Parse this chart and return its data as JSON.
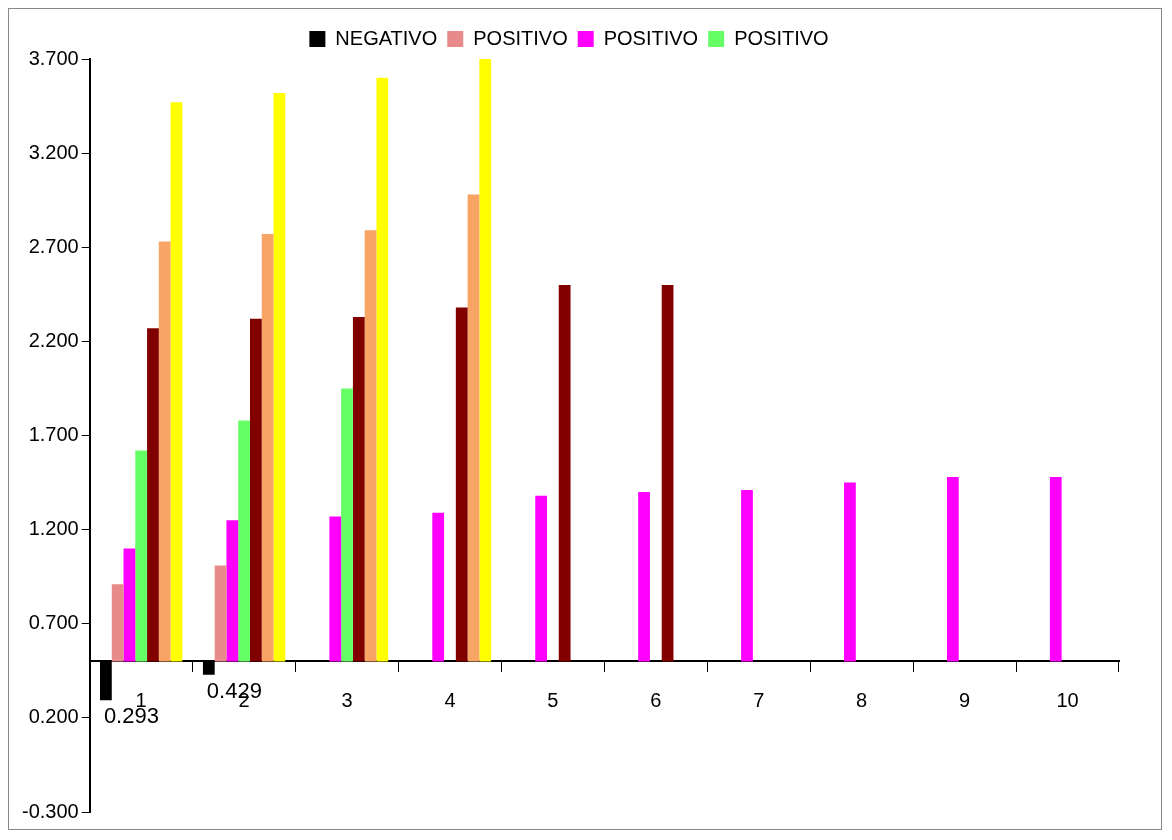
{
  "chart_data": {
    "type": "bar",
    "categories": [
      "1",
      "2",
      "3",
      "4",
      "5",
      "6",
      "7",
      "8",
      "9",
      "10"
    ],
    "series": [
      {
        "name": "NEGATIVO",
        "color": "#000000",
        "base": [
          0.5,
          0.5,
          null,
          null,
          null,
          null,
          null,
          null,
          null,
          null
        ],
        "values": [
          -0.207,
          -0.071,
          null,
          null,
          null,
          null,
          null,
          null,
          null,
          null
        ],
        "value_labels": [
          "0.293",
          "0.429",
          null,
          null,
          null,
          null,
          null,
          null,
          null,
          null
        ]
      },
      {
        "name": "POSITIVO",
        "color": "#e88a8a",
        "base": [
          0.5,
          0.5,
          null,
          null,
          null,
          null,
          null,
          null,
          null,
          null
        ],
        "values": [
          0.41,
          0.51,
          null,
          null,
          null,
          null,
          null,
          null,
          null,
          null
        ]
      },
      {
        "name": "POSITIVO",
        "color": "#ff00ff",
        "base": [
          0.5,
          0.5,
          0.5,
          0.5,
          0.5,
          0.5,
          0.5,
          0.5,
          0.5,
          0.5
        ],
        "values": [
          0.6,
          0.75,
          0.77,
          0.79,
          0.88,
          0.9,
          0.91,
          0.95,
          0.98,
          0.98
        ]
      },
      {
        "name": "POSITIVO",
        "color": "#66ff66",
        "base": [
          0.5,
          0.5,
          0.5,
          null,
          null,
          null,
          null,
          null,
          null,
          null
        ],
        "values": [
          1.12,
          1.28,
          1.45,
          null,
          null,
          null,
          null,
          null,
          null,
          null
        ]
      },
      {
        "color": "#800000",
        "base": [
          0.5,
          0.5,
          0.5,
          0.5,
          0.5,
          0.5,
          null,
          null,
          null,
          null
        ],
        "values": [
          1.77,
          1.82,
          1.83,
          1.88,
          2.0,
          2.0,
          null,
          null,
          null,
          null
        ]
      },
      {
        "color": "#f8a464",
        "base": [
          0.5,
          0.5,
          0.5,
          0.5,
          null,
          null,
          null,
          null,
          null,
          null
        ],
        "values": [
          2.23,
          2.27,
          2.29,
          2.48,
          null,
          null,
          null,
          null,
          null,
          null
        ]
      },
      {
        "color": "#ffff00",
        "base": [
          0.5,
          0.5,
          0.5,
          0.5,
          null,
          null,
          null,
          null,
          null,
          null
        ],
        "values": [
          2.97,
          3.02,
          3.1,
          3.2,
          null,
          null,
          null,
          null,
          null,
          null
        ]
      }
    ],
    "ylim": [
      -0.3,
      3.7
    ],
    "yticks": [
      {
        "value": -0.3,
        "label": "-0.300"
      },
      {
        "value": 0.2,
        "label": "0.200"
      },
      {
        "value": 0.7,
        "label": "0.700"
      },
      {
        "value": 1.2,
        "label": "1.200"
      },
      {
        "value": 1.7,
        "label": "1.700"
      },
      {
        "value": 2.2,
        "label": "2.200"
      },
      {
        "value": 2.7,
        "label": "2.700"
      },
      {
        "value": 3.2,
        "label": "3.200"
      },
      {
        "value": 3.7,
        "label": "3.700"
      }
    ],
    "grid": false,
    "legend": "top"
  }
}
